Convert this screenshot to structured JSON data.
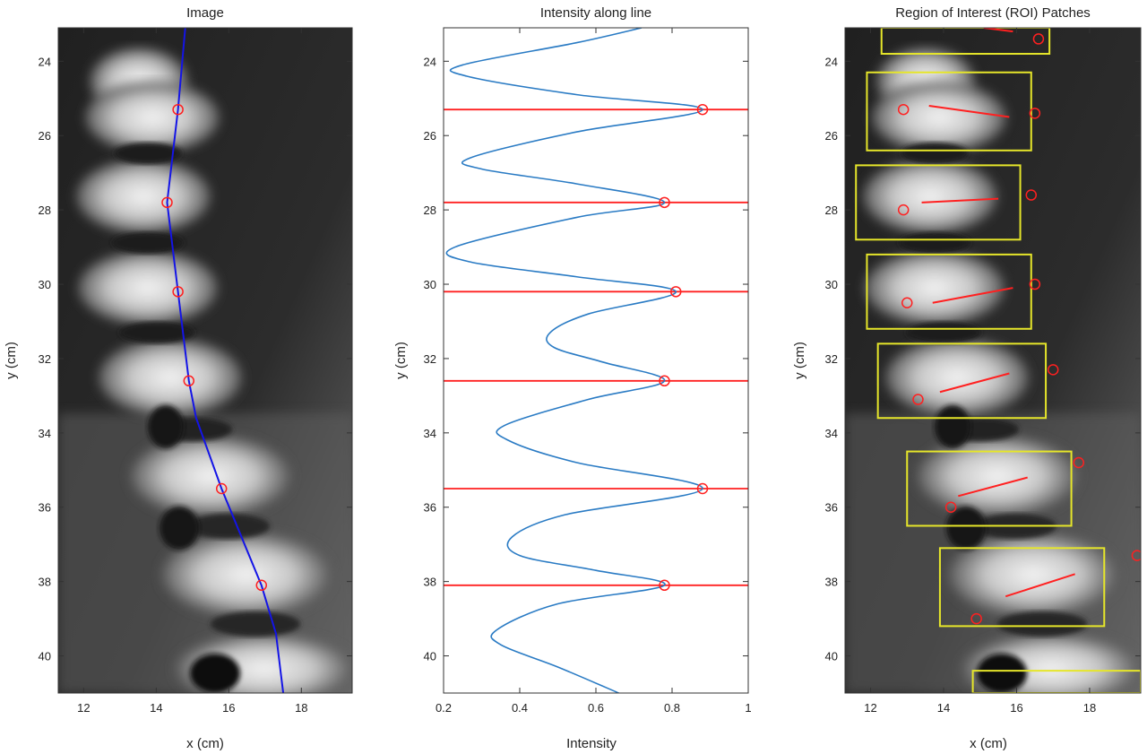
{
  "chart_data": [
    {
      "type": "image",
      "title": "Image",
      "xlabel": "x (cm)",
      "ylabel": "y (cm)",
      "xlim": [
        11.3,
        19.4
      ],
      "ylim": [
        23.1,
        41.0
      ],
      "y_reversed": true,
      "xticks": [
        12,
        14,
        16,
        18
      ],
      "yticks": [
        24,
        26,
        28,
        30,
        32,
        34,
        36,
        38,
        40
      ],
      "colors": {
        "line": "#1414e6",
        "marker": "#ff2020"
      },
      "line_x": [
        14.8,
        14.6,
        14.3,
        14.6,
        14.9,
        15.1,
        15.8,
        16.9,
        17.3,
        17.5
      ],
      "line_y": [
        23.1,
        25.3,
        27.8,
        30.2,
        32.6,
        33.6,
        35.5,
        38.1,
        39.4,
        41.0
      ],
      "points_x": [
        14.6,
        14.3,
        14.6,
        14.9,
        15.8,
        16.9
      ],
      "points_y": [
        25.3,
        27.8,
        30.2,
        32.6,
        35.5,
        38.1
      ]
    },
    {
      "type": "line",
      "title": "Intensity along line",
      "xlabel": "Intensity",
      "ylabel": "y (cm)",
      "xlim": [
        0.2,
        1.0
      ],
      "ylim": [
        23.1,
        41.0
      ],
      "y_reversed": true,
      "xticks": [
        "0.2",
        "0.4",
        "0.6",
        "0.8",
        "1"
      ],
      "yticks": [
        24,
        26,
        28,
        30,
        32,
        34,
        36,
        38,
        40
      ],
      "colors": {
        "line": "#2a7bc4",
        "hline": "#ff2020",
        "marker": "#ff2020"
      },
      "curve_x": [
        0.72,
        0.55,
        0.25,
        0.26,
        0.55,
        0.88,
        0.55,
        0.27,
        0.3,
        0.55,
        0.78,
        0.55,
        0.23,
        0.27,
        0.55,
        0.81,
        0.58,
        0.48,
        0.49,
        0.62,
        0.78,
        0.58,
        0.36,
        0.37,
        0.55,
        0.88,
        0.52,
        0.38,
        0.4,
        0.6,
        0.78,
        0.5,
        0.34,
        0.35,
        0.5,
        0.66
      ],
      "curve_y": [
        23.1,
        23.5,
        24.1,
        24.4,
        24.9,
        25.3,
        25.9,
        26.6,
        26.9,
        27.3,
        27.8,
        28.2,
        29.0,
        29.4,
        29.8,
        30.2,
        30.8,
        31.3,
        31.7,
        32.1,
        32.6,
        33.1,
        33.8,
        34.2,
        34.8,
        35.5,
        36.2,
        36.8,
        37.3,
        37.7,
        38.1,
        38.6,
        39.3,
        39.7,
        40.3,
        41.0
      ],
      "peaks_x": [
        0.88,
        0.78,
        0.81,
        0.78,
        0.88,
        0.78
      ],
      "peaks_y": [
        25.3,
        27.8,
        30.2,
        32.6,
        35.5,
        38.1
      ]
    },
    {
      "type": "image",
      "title": "Region of Interest (ROI) Patches",
      "xlabel": "x (cm)",
      "ylabel": "y (cm)",
      "xlim": [
        11.3,
        19.4
      ],
      "ylim": [
        23.1,
        41.0
      ],
      "y_reversed": true,
      "xticks": [
        12,
        14,
        16,
        18
      ],
      "yticks": [
        24,
        26,
        28,
        30,
        32,
        34,
        36,
        38,
        40
      ],
      "colors": {
        "box": "#e6e62a",
        "segment": "#ff2020",
        "marker": "#ff2020"
      },
      "boxes": [
        {
          "x0": 12.3,
          "x1": 16.9,
          "y0": 23.1,
          "y1": 23.8
        },
        {
          "x0": 11.9,
          "x1": 16.4,
          "y0": 24.3,
          "y1": 26.4
        },
        {
          "x0": 11.6,
          "x1": 16.1,
          "y0": 26.8,
          "y1": 28.8
        },
        {
          "x0": 11.9,
          "x1": 16.4,
          "y0": 29.2,
          "y1": 31.2
        },
        {
          "x0": 12.2,
          "x1": 16.8,
          "y0": 31.6,
          "y1": 33.6
        },
        {
          "x0": 13.0,
          "x1": 17.5,
          "y0": 34.5,
          "y1": 36.5
        },
        {
          "x0": 13.9,
          "x1": 18.4,
          "y0": 37.1,
          "y1": 39.2
        },
        {
          "x0": 14.8,
          "x1": 19.4,
          "y0": 40.4,
          "y1": 41.0
        }
      ],
      "segments": [
        {
          "x0": 15.1,
          "x1": 15.9,
          "y0": 23.1,
          "y1": 23.2
        },
        {
          "x0": 13.6,
          "x1": 15.8,
          "y0": 25.2,
          "y1": 25.5
        },
        {
          "x0": 13.4,
          "x1": 15.5,
          "y0": 27.8,
          "y1": 27.7
        },
        {
          "x0": 13.7,
          "x1": 15.9,
          "y0": 30.5,
          "y1": 30.1
        },
        {
          "x0": 13.9,
          "x1": 15.8,
          "y0": 32.9,
          "y1": 32.4
        },
        {
          "x0": 14.4,
          "x1": 16.3,
          "y0": 35.7,
          "y1": 35.2
        },
        {
          "x0": 15.7,
          "x1": 17.6,
          "y0": 38.4,
          "y1": 37.8
        }
      ],
      "markers_x": [
        16.6,
        12.9,
        16.5,
        12.9,
        16.4,
        13.0,
        16.5,
        13.3,
        17.0,
        14.2,
        17.7,
        14.9,
        19.3
      ],
      "markers_y": [
        23.4,
        25.3,
        25.4,
        28.0,
        27.6,
        30.5,
        30.0,
        33.1,
        32.3,
        36.0,
        34.8,
        39.0,
        37.3
      ]
    }
  ]
}
